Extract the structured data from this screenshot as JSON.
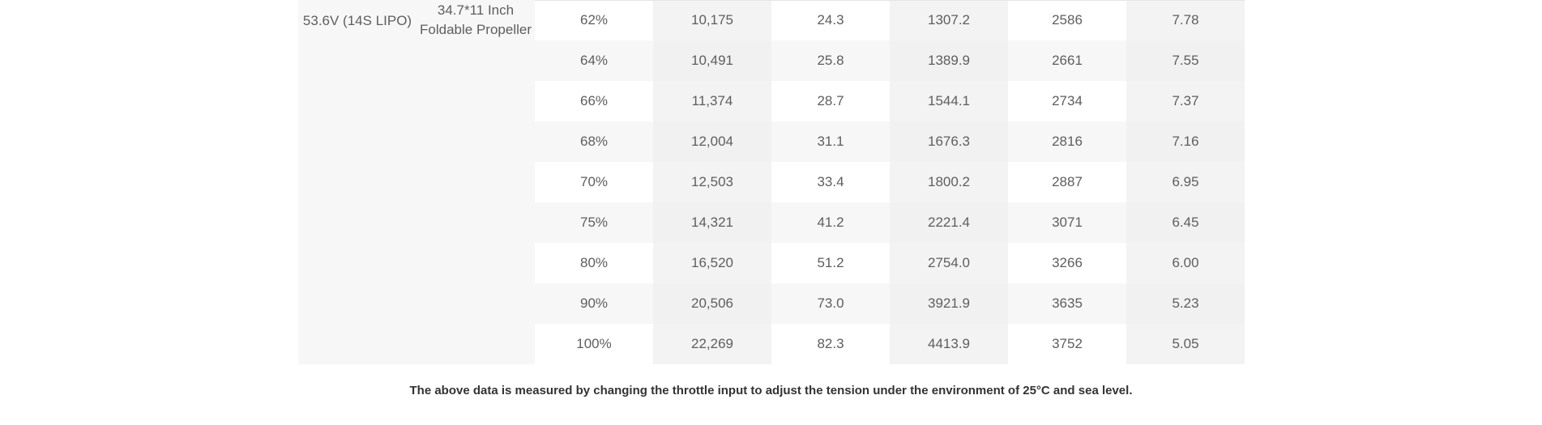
{
  "table": {
    "voltage": "53.6V (14S LIPO)",
    "propeller_line1": "34.7*11 Inch",
    "propeller_line2": "Foldable Propeller",
    "rows": [
      [
        "62%",
        "10,175",
        "24.3",
        "1307.2",
        "2586",
        "7.78"
      ],
      [
        "64%",
        "10,491",
        "25.8",
        "1389.9",
        "2661",
        "7.55"
      ],
      [
        "66%",
        "11,374",
        "28.7",
        "1544.1",
        "2734",
        "7.37"
      ],
      [
        "68%",
        "12,004",
        "31.1",
        "1676.3",
        "2816",
        "7.16"
      ],
      [
        "70%",
        "12,503",
        "33.4",
        "1800.2",
        "2887",
        "6.95"
      ],
      [
        "75%",
        "14,321",
        "41.2",
        "2221.4",
        "3071",
        "6.45"
      ],
      [
        "80%",
        "16,520",
        "51.2",
        "2754.0",
        "3266",
        "6.00"
      ],
      [
        "90%",
        "20,506",
        "73.0",
        "3921.9",
        "3635",
        "5.23"
      ],
      [
        "100%",
        "22,269",
        "82.3",
        "4413.9",
        "3752",
        "5.05"
      ]
    ]
  },
  "footnote": "The above data is measured by changing the throttle input to adjust the tension under the environment of 25°C and sea level."
}
